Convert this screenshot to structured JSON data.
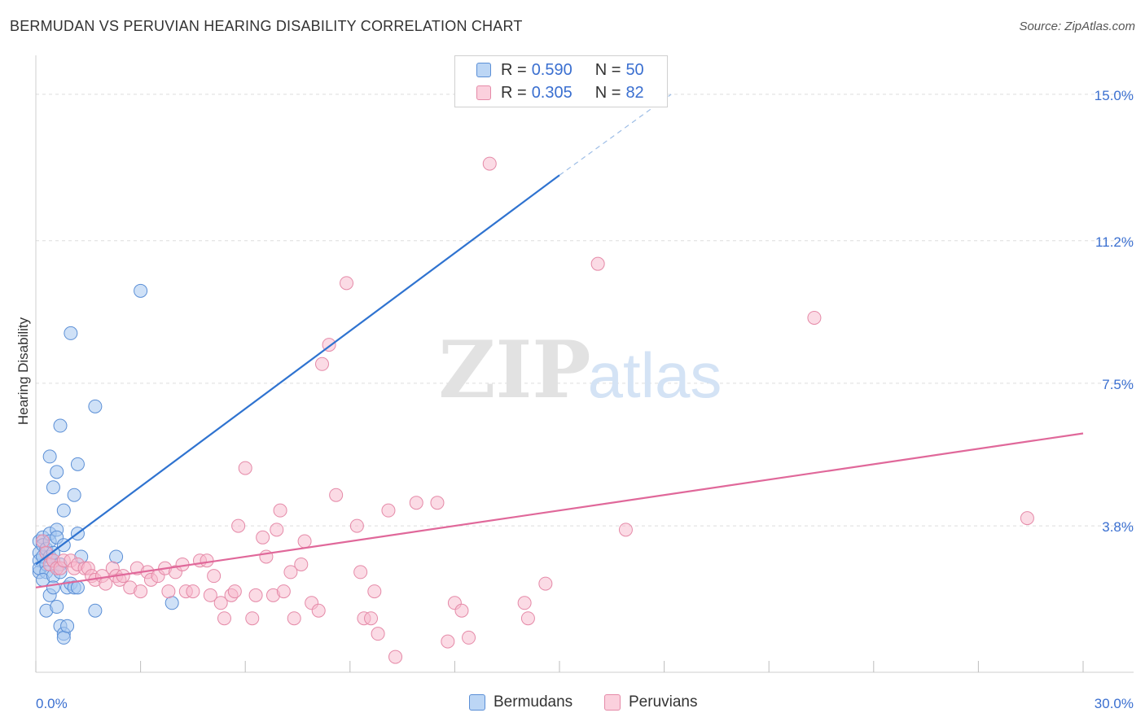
{
  "title": "BERMUDAN VS PERUVIAN HEARING DISABILITY CORRELATION CHART",
  "source": "Source: ZipAtlas.com",
  "watermark": {
    "zip": "ZIP",
    "atlas": "atlas"
  },
  "legend_top": [
    {
      "r_label": "R =",
      "r_value": "0.590",
      "n_label": "N =",
      "n_value": "50"
    },
    {
      "r_label": "R =",
      "r_value": "0.305",
      "n_label": "N =",
      "n_value": "82"
    }
  ],
  "legend_bottom": [
    "Bermudans",
    "Peruvians"
  ],
  "colors": {
    "bermudans_fill": "#a8c8f0",
    "bermudans_stroke": "#5b8fd6",
    "bermudans_line": "#2f73d0",
    "peruvians_fill": "#f7b8cb",
    "peruvians_stroke": "#e58aa8",
    "peruvians_line": "#e0689a",
    "axis_label": "#3a6fd0",
    "grid": "#dddddd"
  },
  "chart_data": {
    "type": "scatter",
    "title": "BERMUDAN VS PERUVIAN HEARING DISABILITY CORRELATION CHART",
    "xlabel": "",
    "ylabel": "Hearing Disability",
    "xlim": [
      0,
      30
    ],
    "ylim": [
      0,
      15.8
    ],
    "x_tick_labels": [
      "0.0%",
      "30.0%"
    ],
    "y_ticks": [
      3.8,
      7.5,
      11.2,
      15.0
    ],
    "y_tick_labels": [
      "3.8%",
      "7.5%",
      "11.2%",
      "15.0%"
    ],
    "grid": true,
    "series": [
      {
        "name": "Bermudans",
        "r": 0.59,
        "n": 50,
        "trend": {
          "x": [
            0.0,
            15.0
          ],
          "y": [
            2.8,
            12.9
          ]
        },
        "trend_dashed": {
          "x": [
            15.0,
            18.2
          ],
          "y": [
            12.9,
            15.0
          ]
        },
        "points": [
          [
            0.1,
            3.4
          ],
          [
            0.1,
            3.1
          ],
          [
            0.1,
            2.9
          ],
          [
            0.1,
            2.6
          ],
          [
            0.1,
            2.7
          ],
          [
            0.2,
            3.5
          ],
          [
            0.2,
            3.3
          ],
          [
            0.2,
            3.0
          ],
          [
            0.3,
            2.8
          ],
          [
            0.3,
            2.6
          ],
          [
            0.2,
            2.4
          ],
          [
            0.3,
            3.2
          ],
          [
            0.4,
            3.6
          ],
          [
            0.4,
            3.4
          ],
          [
            0.4,
            3.0
          ],
          [
            0.5,
            2.9
          ],
          [
            0.5,
            3.1
          ],
          [
            0.5,
            2.5
          ],
          [
            0.6,
            3.7
          ],
          [
            0.6,
            3.5
          ],
          [
            0.7,
            2.8
          ],
          [
            0.7,
            2.6
          ],
          [
            0.8,
            3.3
          ],
          [
            0.3,
            1.6
          ],
          [
            0.4,
            2.0
          ],
          [
            0.5,
            2.2
          ],
          [
            0.6,
            1.7
          ],
          [
            0.7,
            1.2
          ],
          [
            0.8,
            1.0
          ],
          [
            0.8,
            0.9
          ],
          [
            0.9,
            2.2
          ],
          [
            0.9,
            1.2
          ],
          [
            1.0,
            2.3
          ],
          [
            1.1,
            2.2
          ],
          [
            1.2,
            2.2
          ],
          [
            0.4,
            5.6
          ],
          [
            0.5,
            4.8
          ],
          [
            0.6,
            5.2
          ],
          [
            0.7,
            6.4
          ],
          [
            0.8,
            4.2
          ],
          [
            1.0,
            8.8
          ],
          [
            1.1,
            4.6
          ],
          [
            1.2,
            5.4
          ],
          [
            1.2,
            3.6
          ],
          [
            1.3,
            3.0
          ],
          [
            1.7,
            1.6
          ],
          [
            1.7,
            6.9
          ],
          [
            2.3,
            3.0
          ],
          [
            3.0,
            9.9
          ],
          [
            3.9,
            1.8
          ]
        ]
      },
      {
        "name": "Peruvians",
        "r": 0.305,
        "n": 82,
        "trend": {
          "x": [
            0.0,
            30.0
          ],
          "y": [
            2.2,
            6.2
          ]
        },
        "points": [
          [
            0.2,
            3.4
          ],
          [
            0.3,
            3.1
          ],
          [
            0.4,
            2.8
          ],
          [
            0.5,
            2.9
          ],
          [
            0.6,
            2.7
          ],
          [
            0.7,
            2.7
          ],
          [
            0.8,
            2.9
          ],
          [
            1.0,
            2.9
          ],
          [
            1.1,
            2.7
          ],
          [
            1.2,
            2.8
          ],
          [
            1.4,
            2.7
          ],
          [
            1.5,
            2.7
          ],
          [
            1.6,
            2.5
          ],
          [
            1.7,
            2.4
          ],
          [
            1.9,
            2.5
          ],
          [
            2.0,
            2.3
          ],
          [
            2.2,
            2.7
          ],
          [
            2.3,
            2.5
          ],
          [
            2.4,
            2.4
          ],
          [
            2.5,
            2.5
          ],
          [
            2.7,
            2.2
          ],
          [
            2.9,
            2.7
          ],
          [
            3.0,
            2.1
          ],
          [
            3.2,
            2.6
          ],
          [
            3.3,
            2.4
          ],
          [
            3.5,
            2.5
          ],
          [
            3.7,
            2.7
          ],
          [
            3.8,
            2.1
          ],
          [
            4.0,
            2.6
          ],
          [
            4.2,
            2.8
          ],
          [
            4.3,
            2.1
          ],
          [
            4.5,
            2.1
          ],
          [
            4.7,
            2.9
          ],
          [
            4.9,
            2.9
          ],
          [
            5.0,
            2.0
          ],
          [
            5.1,
            2.5
          ],
          [
            5.3,
            1.8
          ],
          [
            5.4,
            1.4
          ],
          [
            5.6,
            2.0
          ],
          [
            5.7,
            2.1
          ],
          [
            5.8,
            3.8
          ],
          [
            6.0,
            5.3
          ],
          [
            6.2,
            1.4
          ],
          [
            6.3,
            2.0
          ],
          [
            6.5,
            3.5
          ],
          [
            6.6,
            3.0
          ],
          [
            6.8,
            2.0
          ],
          [
            6.9,
            3.7
          ],
          [
            7.0,
            4.2
          ],
          [
            7.1,
            2.1
          ],
          [
            7.3,
            2.6
          ],
          [
            7.4,
            1.4
          ],
          [
            7.6,
            2.8
          ],
          [
            7.7,
            3.4
          ],
          [
            7.9,
            1.8
          ],
          [
            8.1,
            1.6
          ],
          [
            8.2,
            8.0
          ],
          [
            8.4,
            8.5
          ],
          [
            8.6,
            4.6
          ],
          [
            8.9,
            10.1
          ],
          [
            9.2,
            3.8
          ],
          [
            9.3,
            2.6
          ],
          [
            9.4,
            1.4
          ],
          [
            9.6,
            1.4
          ],
          [
            9.7,
            2.1
          ],
          [
            9.8,
            1.0
          ],
          [
            10.1,
            4.2
          ],
          [
            10.3,
            0.4
          ],
          [
            10.9,
            4.4
          ],
          [
            11.5,
            4.4
          ],
          [
            11.8,
            0.8
          ],
          [
            12.0,
            1.8
          ],
          [
            12.2,
            1.6
          ],
          [
            12.4,
            0.9
          ],
          [
            13.0,
            13.2
          ],
          [
            14.0,
            1.8
          ],
          [
            14.1,
            1.4
          ],
          [
            14.6,
            2.3
          ],
          [
            16.1,
            10.6
          ],
          [
            16.9,
            3.7
          ],
          [
            22.3,
            9.2
          ],
          [
            28.4,
            4.0
          ]
        ]
      }
    ]
  }
}
